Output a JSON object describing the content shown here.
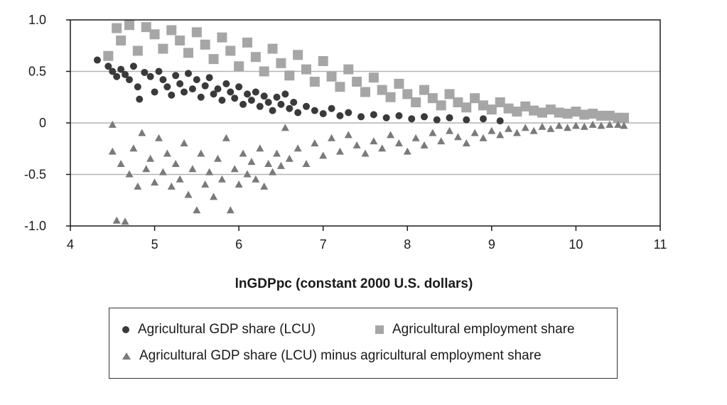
{
  "chart_data": {
    "type": "scatter",
    "title": "",
    "xlabel": "lnGDPpc (constant 2000 U.S. dollars)",
    "ylabel": "",
    "xlim": [
      4,
      11
    ],
    "ylim": [
      -1.0,
      1.0
    ],
    "xticks": [
      "4",
      "5",
      "6",
      "7",
      "8",
      "9",
      "10",
      "11"
    ],
    "yticks": [
      "1.0",
      "0.5",
      "0",
      "-0.5",
      "-1.0"
    ],
    "grid": "horizontal",
    "legend_position": "bottom",
    "series": [
      {
        "name": "Agricultural GDP share (LCU)",
        "marker": "circle",
        "color": "#3a3a3a",
        "points": [
          [
            4.32,
            0.61
          ],
          [
            4.45,
            0.55
          ],
          [
            4.5,
            0.5
          ],
          [
            4.55,
            0.45
          ],
          [
            4.6,
            0.52
          ],
          [
            4.65,
            0.47
          ],
          [
            4.7,
            0.42
          ],
          [
            4.75,
            0.55
          ],
          [
            4.8,
            0.35
          ],
          [
            4.82,
            0.23
          ],
          [
            4.88,
            0.49
          ],
          [
            4.95,
            0.45
          ],
          [
            5.0,
            0.3
          ],
          [
            5.05,
            0.5
          ],
          [
            5.1,
            0.42
          ],
          [
            5.15,
            0.35
          ],
          [
            5.2,
            0.27
          ],
          [
            5.25,
            0.46
          ],
          [
            5.3,
            0.38
          ],
          [
            5.35,
            0.3
          ],
          [
            5.4,
            0.48
          ],
          [
            5.45,
            0.33
          ],
          [
            5.5,
            0.42
          ],
          [
            5.55,
            0.25
          ],
          [
            5.6,
            0.36
          ],
          [
            5.65,
            0.44
          ],
          [
            5.7,
            0.28
          ],
          [
            5.75,
            0.33
          ],
          [
            5.8,
            0.22
          ],
          [
            5.85,
            0.38
          ],
          [
            5.9,
            0.3
          ],
          [
            5.95,
            0.24
          ],
          [
            6.0,
            0.35
          ],
          [
            6.05,
            0.18
          ],
          [
            6.1,
            0.28
          ],
          [
            6.15,
            0.22
          ],
          [
            6.2,
            0.3
          ],
          [
            6.25,
            0.16
          ],
          [
            6.3,
            0.26
          ],
          [
            6.35,
            0.2
          ],
          [
            6.4,
            0.12
          ],
          [
            6.45,
            0.25
          ],
          [
            6.5,
            0.18
          ],
          [
            6.55,
            0.28
          ],
          [
            6.6,
            0.14
          ],
          [
            6.65,
            0.2
          ],
          [
            6.7,
            0.1
          ],
          [
            6.8,
            0.16
          ],
          [
            6.9,
            0.12
          ],
          [
            7.0,
            0.09
          ],
          [
            7.1,
            0.14
          ],
          [
            7.2,
            0.07
          ],
          [
            7.3,
            0.1
          ],
          [
            7.45,
            0.06
          ],
          [
            7.6,
            0.08
          ],
          [
            7.75,
            0.05
          ],
          [
            7.9,
            0.07
          ],
          [
            8.05,
            0.04
          ],
          [
            8.2,
            0.06
          ],
          [
            8.35,
            0.03
          ],
          [
            8.5,
            0.05
          ],
          [
            8.7,
            0.03
          ],
          [
            8.9,
            0.04
          ],
          [
            9.1,
            0.02
          ]
        ]
      },
      {
        "name": "Agricultural employment share",
        "marker": "square",
        "color": "#a6a6a6",
        "points": [
          [
            4.45,
            0.65
          ],
          [
            4.55,
            0.92
          ],
          [
            4.6,
            0.8
          ],
          [
            4.7,
            0.95
          ],
          [
            4.8,
            0.7
          ],
          [
            4.9,
            0.93
          ],
          [
            5.0,
            0.86
          ],
          [
            5.1,
            0.72
          ],
          [
            5.2,
            0.9
          ],
          [
            5.3,
            0.8
          ],
          [
            5.4,
            0.68
          ],
          [
            5.5,
            0.88
          ],
          [
            5.6,
            0.76
          ],
          [
            5.7,
            0.62
          ],
          [
            5.8,
            0.83
          ],
          [
            5.9,
            0.7
          ],
          [
            6.0,
            0.55
          ],
          [
            6.1,
            0.78
          ],
          [
            6.2,
            0.64
          ],
          [
            6.3,
            0.5
          ],
          [
            6.4,
            0.72
          ],
          [
            6.5,
            0.58
          ],
          [
            6.6,
            0.46
          ],
          [
            6.7,
            0.66
          ],
          [
            6.8,
            0.52
          ],
          [
            6.9,
            0.4
          ],
          [
            7.0,
            0.6
          ],
          [
            7.1,
            0.45
          ],
          [
            7.2,
            0.35
          ],
          [
            7.3,
            0.52
          ],
          [
            7.4,
            0.4
          ],
          [
            7.5,
            0.3
          ],
          [
            7.6,
            0.44
          ],
          [
            7.7,
            0.32
          ],
          [
            7.8,
            0.25
          ],
          [
            7.9,
            0.38
          ],
          [
            8.0,
            0.28
          ],
          [
            8.1,
            0.2
          ],
          [
            8.2,
            0.32
          ],
          [
            8.3,
            0.24
          ],
          [
            8.4,
            0.17
          ],
          [
            8.5,
            0.28
          ],
          [
            8.6,
            0.2
          ],
          [
            8.7,
            0.15
          ],
          [
            8.8,
            0.24
          ],
          [
            8.9,
            0.17
          ],
          [
            9.0,
            0.13
          ],
          [
            9.1,
            0.2
          ],
          [
            9.2,
            0.14
          ],
          [
            9.3,
            0.11
          ],
          [
            9.4,
            0.16
          ],
          [
            9.5,
            0.12
          ],
          [
            9.6,
            0.1
          ],
          [
            9.7,
            0.13
          ],
          [
            9.8,
            0.1
          ],
          [
            9.9,
            0.09
          ],
          [
            10.0,
            0.11
          ],
          [
            10.1,
            0.08
          ],
          [
            10.2,
            0.09
          ],
          [
            10.3,
            0.07
          ],
          [
            10.4,
            0.07
          ],
          [
            10.5,
            0.05
          ],
          [
            10.57,
            0.05
          ]
        ]
      },
      {
        "name": "Agricultural GDP share (LCU) minus agricultural employment share",
        "marker": "triangle",
        "color": "#7a7a7a",
        "points": [
          [
            4.5,
            -0.02
          ],
          [
            4.5,
            -0.28
          ],
          [
            4.55,
            -0.95
          ],
          [
            4.6,
            -0.4
          ],
          [
            4.65,
            -0.96
          ],
          [
            4.7,
            -0.5
          ],
          [
            4.75,
            -0.25
          ],
          [
            4.8,
            -0.62
          ],
          [
            4.85,
            -0.1
          ],
          [
            4.9,
            -0.45
          ],
          [
            4.95,
            -0.35
          ],
          [
            5.0,
            -0.58
          ],
          [
            5.05,
            -0.15
          ],
          [
            5.1,
            -0.48
          ],
          [
            5.15,
            -0.3
          ],
          [
            5.2,
            -0.62
          ],
          [
            5.25,
            -0.4
          ],
          [
            5.3,
            -0.55
          ],
          [
            5.35,
            -0.2
          ],
          [
            5.4,
            -0.7
          ],
          [
            5.45,
            -0.45
          ],
          [
            5.5,
            -0.85
          ],
          [
            5.55,
            -0.3
          ],
          [
            5.6,
            -0.6
          ],
          [
            5.65,
            -0.48
          ],
          [
            5.7,
            -0.72
          ],
          [
            5.75,
            -0.35
          ],
          [
            5.8,
            -0.55
          ],
          [
            5.85,
            -0.15
          ],
          [
            5.9,
            -0.85
          ],
          [
            5.95,
            -0.45
          ],
          [
            6.0,
            -0.6
          ],
          [
            6.05,
            -0.3
          ],
          [
            6.1,
            -0.5
          ],
          [
            6.15,
            -0.38
          ],
          [
            6.2,
            -0.55
          ],
          [
            6.25,
            -0.25
          ],
          [
            6.3,
            -0.62
          ],
          [
            6.35,
            -0.4
          ],
          [
            6.4,
            -0.48
          ],
          [
            6.45,
            -0.3
          ],
          [
            6.5,
            -0.42
          ],
          [
            6.55,
            -0.05
          ],
          [
            6.6,
            -0.35
          ],
          [
            6.7,
            -0.25
          ],
          [
            6.8,
            -0.4
          ],
          [
            6.9,
            -0.2
          ],
          [
            7.0,
            -0.32
          ],
          [
            7.1,
            -0.15
          ],
          [
            7.2,
            -0.28
          ],
          [
            7.3,
            -0.12
          ],
          [
            7.4,
            -0.22
          ],
          [
            7.5,
            -0.3
          ],
          [
            7.6,
            -0.18
          ],
          [
            7.7,
            -0.25
          ],
          [
            7.8,
            -0.12
          ],
          [
            7.9,
            -0.2
          ],
          [
            8.0,
            -0.28
          ],
          [
            8.1,
            -0.15
          ],
          [
            8.2,
            -0.22
          ],
          [
            8.3,
            -0.1
          ],
          [
            8.4,
            -0.18
          ],
          [
            8.5,
            -0.08
          ],
          [
            8.6,
            -0.14
          ],
          [
            8.7,
            -0.2
          ],
          [
            8.8,
            -0.1
          ],
          [
            8.9,
            -0.15
          ],
          [
            9.0,
            -0.08
          ],
          [
            9.1,
            -0.12
          ],
          [
            9.2,
            -0.06
          ],
          [
            9.3,
            -0.1
          ],
          [
            9.4,
            -0.05
          ],
          [
            9.5,
            -0.08
          ],
          [
            9.6,
            -0.04
          ],
          [
            9.7,
            -0.06
          ],
          [
            9.8,
            -0.03
          ],
          [
            9.9,
            -0.05
          ],
          [
            10.0,
            -0.03
          ],
          [
            10.1,
            -0.04
          ],
          [
            10.2,
            -0.02
          ],
          [
            10.3,
            -0.03
          ],
          [
            10.4,
            -0.02
          ],
          [
            10.5,
            -0.02
          ],
          [
            10.57,
            -0.03
          ]
        ]
      }
    ]
  }
}
